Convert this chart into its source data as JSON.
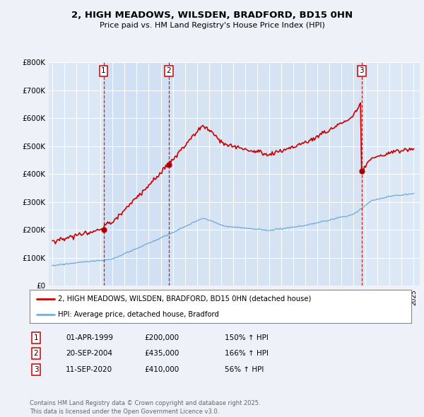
{
  "title_line1": "2, HIGH MEADOWS, WILSDEN, BRADFORD, BD15 0HN",
  "title_line2": "Price paid vs. HM Land Registry's House Price Index (HPI)",
  "background_color": "#eef2f8",
  "plot_bg_color": "#dce8f5",
  "shade_color": "#c8daf0",
  "grid_color": "#ffffff",
  "line1_color": "#cc0000",
  "line2_color": "#7aaed6",
  "sale_prices": [
    200000,
    435000,
    410000
  ],
  "sale_labels": [
    "1",
    "2",
    "3"
  ],
  "legend_line1": "2, HIGH MEADOWS, WILSDEN, BRADFORD, BD15 0HN (detached house)",
  "legend_line2": "HPI: Average price, detached house, Bradford",
  "table_data": [
    [
      "1",
      "01-APR-1999",
      "£200,000",
      "150% ↑ HPI"
    ],
    [
      "2",
      "20-SEP-2004",
      "£435,000",
      "166% ↑ HPI"
    ],
    [
      "3",
      "11-SEP-2020",
      "£410,000",
      "56% ↑ HPI"
    ]
  ],
  "footer": "Contains HM Land Registry data © Crown copyright and database right 2025.\nThis data is licensed under the Open Government Licence v3.0.",
  "ylim": [
    0,
    800000
  ],
  "yticks": [
    0,
    100000,
    200000,
    300000,
    400000,
    500000,
    600000,
    700000,
    800000
  ],
  "ytick_labels": [
    "£0",
    "£100K",
    "£200K",
    "£300K",
    "£400K",
    "£500K",
    "£600K",
    "£700K",
    "£800K"
  ]
}
